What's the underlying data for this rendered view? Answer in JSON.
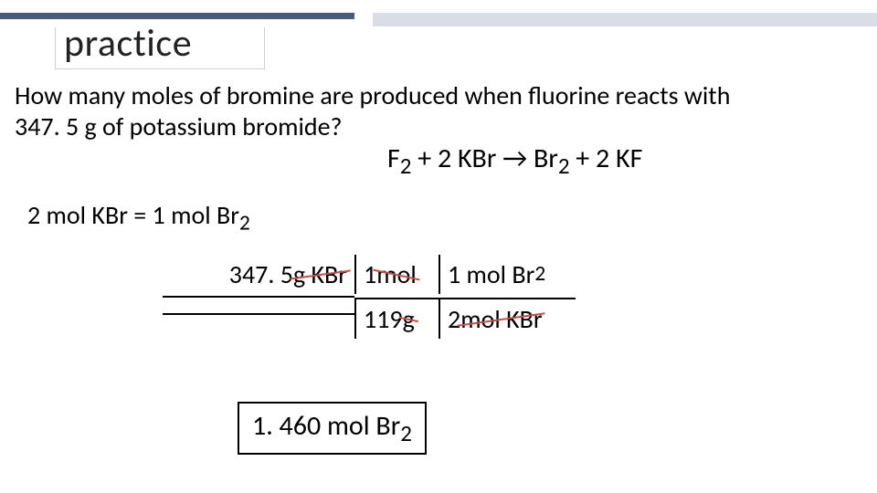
{
  "title": "practice",
  "question_line1": "How many moles of bromine are produced when fluorine reacts with",
  "question_line2_a": "347. 5 g of potassium bromide?",
  "equation": {
    "a": "F",
    "a_sub": "2",
    "plus1": " + 2 KBr → Br",
    "b_sub": "2",
    "plus2": " + 2 KF"
  },
  "ratio": {
    "lhs": "2 mol KBr = 1 mol Br",
    "sub": "2"
  },
  "da": {
    "r1c1_a": "347. 5 ",
    "r1c1_strike": "g KBr",
    "r1c2_a": "1 ",
    "r1c2_strike": "mol",
    "r1c3_a": "1 mol Br",
    "r1c3_sub": "2",
    "r2c2_a": "119 ",
    "r2c2_strike": "g",
    "r2c3_a": "2 ",
    "r2c3_strike": "mol KBr"
  },
  "answer": {
    "text": "1. 460 mol Br",
    "sub": "2"
  },
  "colors": {
    "rule_dark": "#4a5b7a",
    "rule_light": "#d9dde6",
    "strike": "#c0504d",
    "text": "#000000",
    "bg": "#ffffff"
  }
}
